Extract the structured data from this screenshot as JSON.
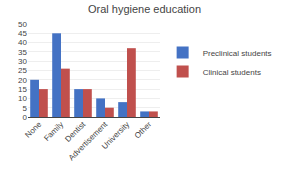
{
  "chart_data": {
    "type": "bar",
    "title": "Oral hygiene education",
    "categories": [
      "None",
      "Family",
      "Dentist",
      "Advertisement",
      "University",
      "Other"
    ],
    "series": [
      {
        "name": "Preclinical students",
        "color": "#4472C4",
        "values": [
          20,
          45,
          15,
          10,
          8,
          3
        ]
      },
      {
        "name": "Clinical students",
        "color": "#C0504D",
        "values": [
          15,
          26,
          15,
          5,
          37,
          3
        ]
      }
    ],
    "ylim": [
      0,
      50
    ],
    "yticks": [
      0,
      5,
      10,
      15,
      20,
      25,
      30,
      35,
      40,
      45,
      50
    ],
    "grid": true,
    "legend": "right"
  }
}
